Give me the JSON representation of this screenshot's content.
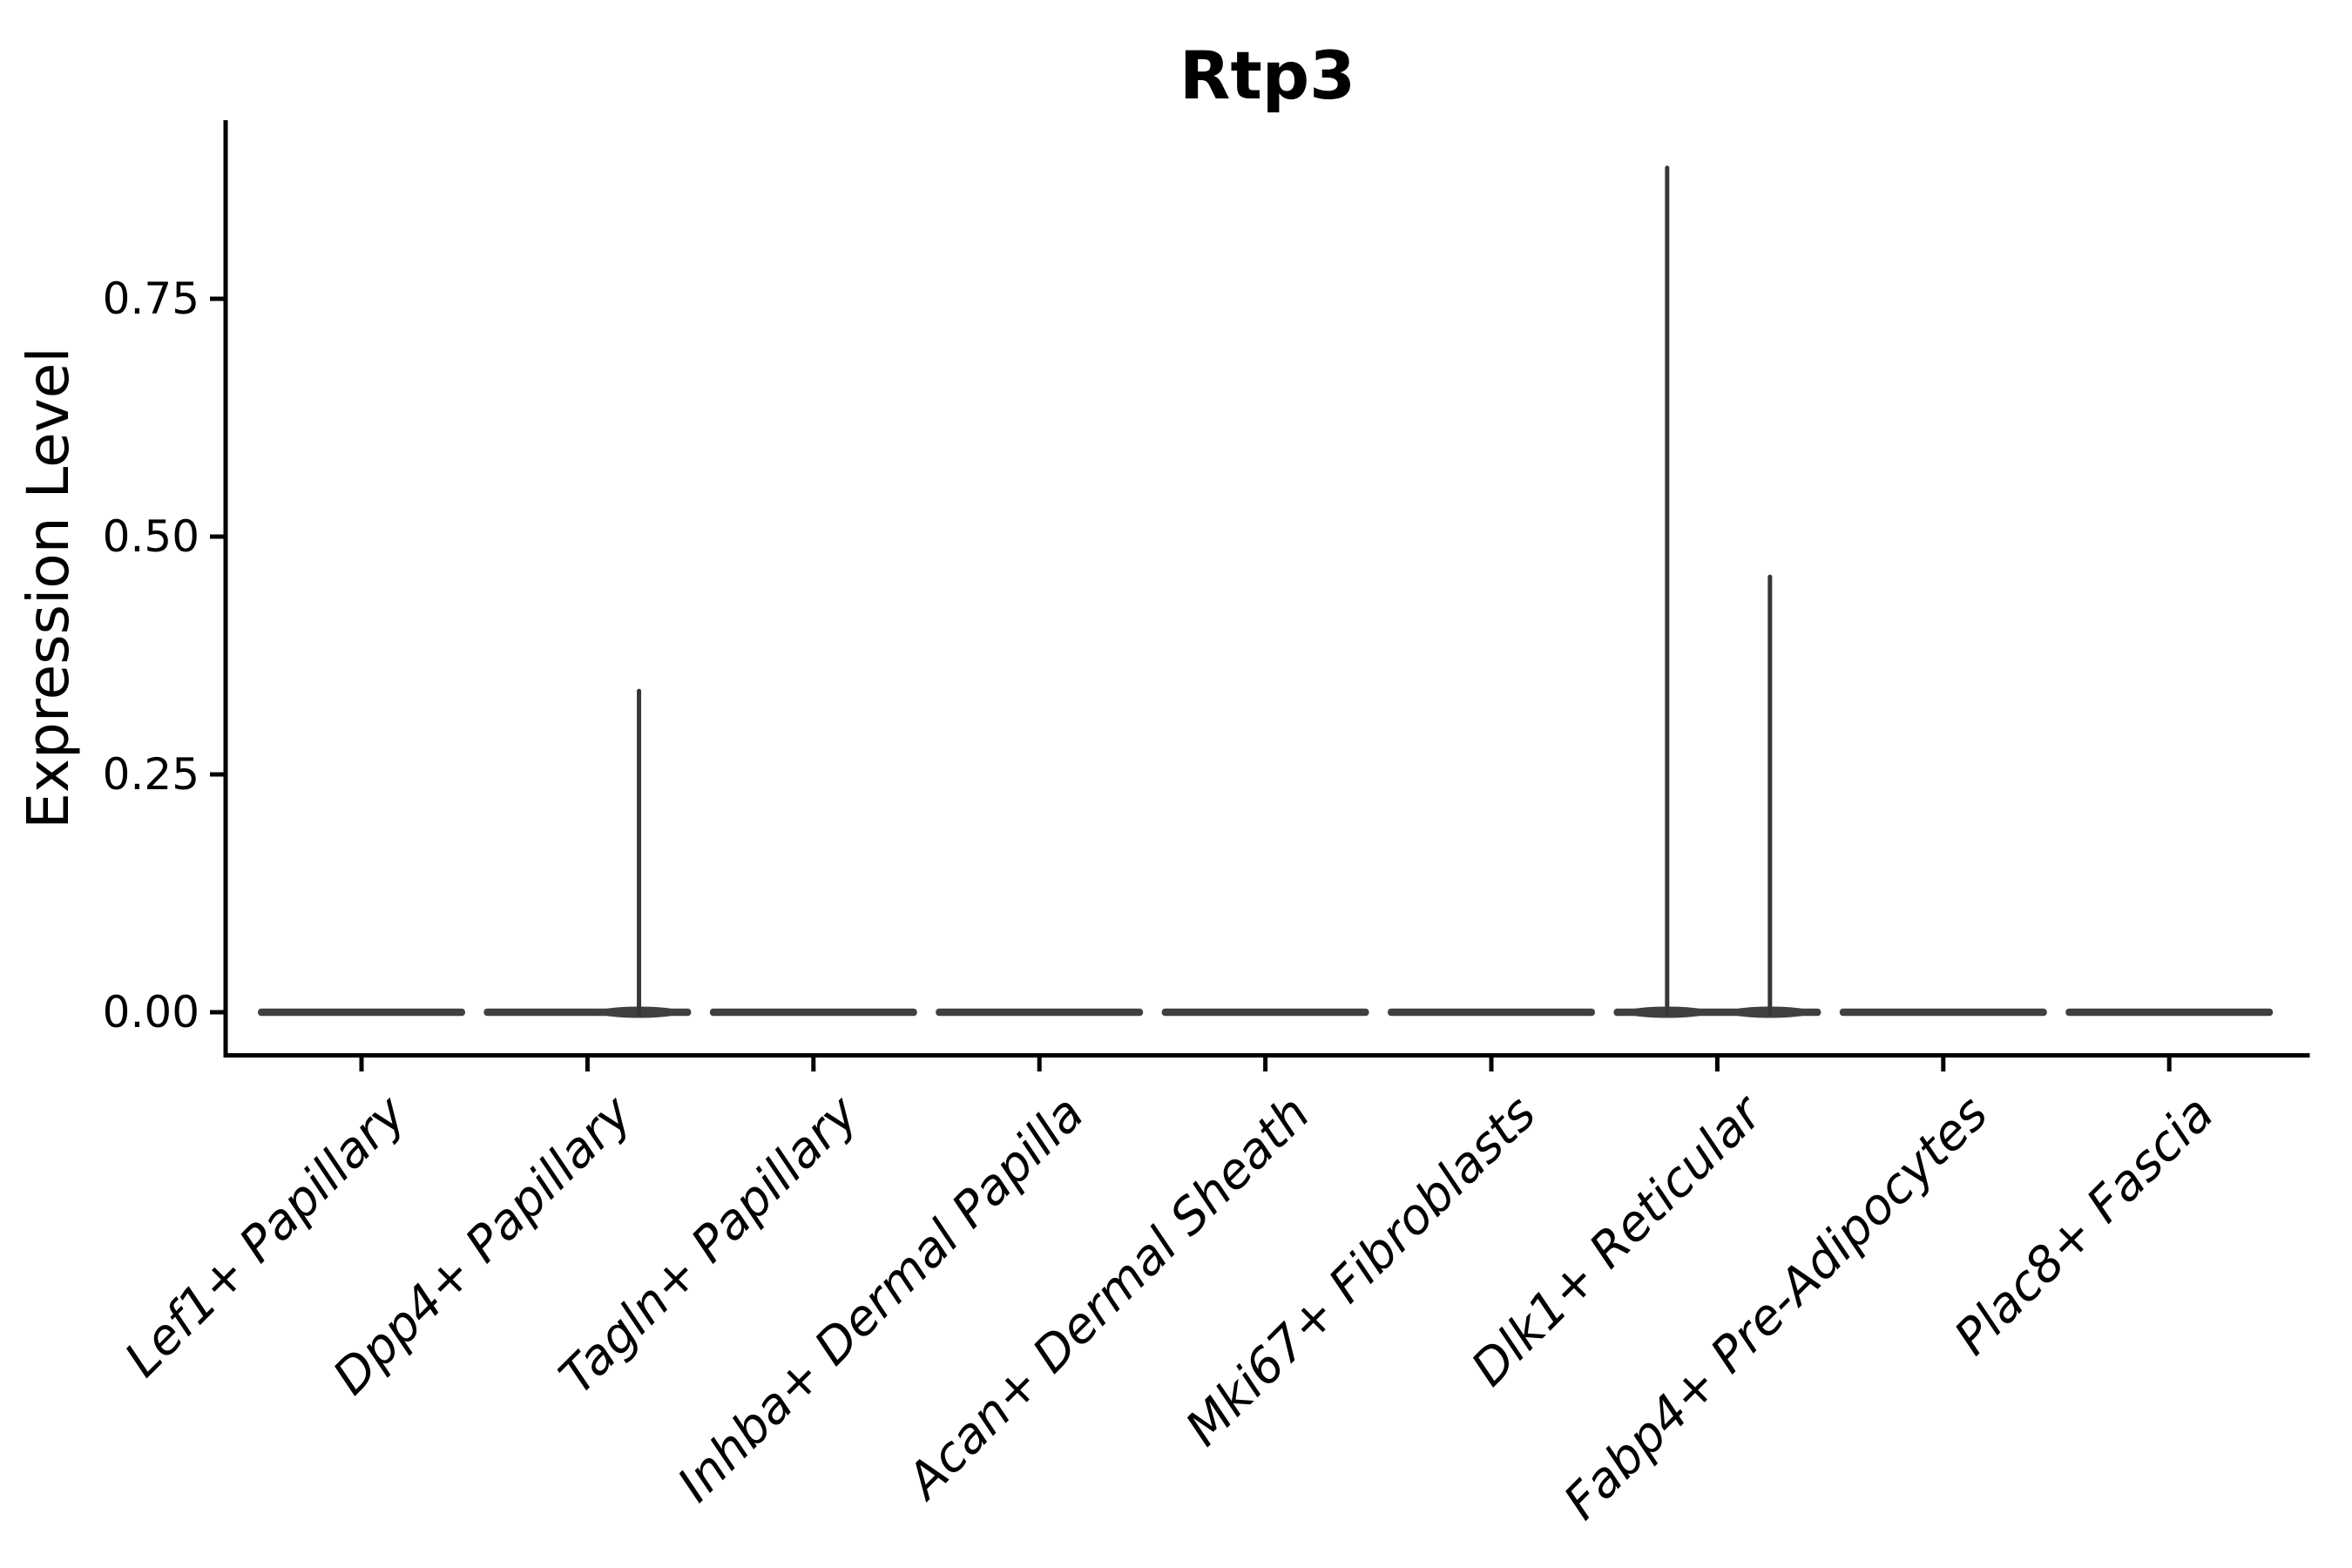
{
  "chart_data": {
    "type": "violin",
    "title": "Rtp3",
    "xlabel": "",
    "ylabel": "Expression Level",
    "categories": [
      "Lef1+ Papillary",
      "Dpp4+ Papillary",
      "Tagln+ Papillary",
      "Inhba+ Dermal Papilla",
      "Acan+ Dermal Sheath",
      "Mki67+ Fibroblasts",
      "Dlk1+ Reticular",
      "Fabp4+ Pre-Adipocytes",
      "Plac8+ Fascia"
    ],
    "yticks": [
      0.0,
      0.25,
      0.5,
      0.75
    ],
    "ytick_labels": [
      "0.00",
      "0.25",
      "0.50",
      "0.75"
    ],
    "ylim": [
      -0.04,
      0.94
    ],
    "grid": false,
    "legend": null,
    "series": [
      {
        "category": "Lef1+ Papillary",
        "base_value": 0.0,
        "spikes": []
      },
      {
        "category": "Dpp4+ Papillary",
        "base_value": 0.0,
        "spikes": [
          {
            "value": 0.34,
            "offset": 0.228
          }
        ]
      },
      {
        "category": "Tagln+ Papillary",
        "base_value": 0.0,
        "spikes": []
      },
      {
        "category": "Inhba+ Dermal Papilla",
        "base_value": 0.0,
        "spikes": []
      },
      {
        "category": "Acan+ Dermal Sheath",
        "base_value": 0.0,
        "spikes": []
      },
      {
        "category": "Mki67+ Fibroblasts",
        "base_value": 0.0,
        "spikes": []
      },
      {
        "category": "Dlk1+ Reticular",
        "base_value": 0.0,
        "spikes": [
          {
            "value": 0.89,
            "offset": -0.222
          },
          {
            "value": 0.46,
            "offset": 0.233
          }
        ]
      },
      {
        "category": "Fabp4+ Pre-Adipocytes",
        "base_value": 0.0,
        "spikes": []
      },
      {
        "category": "Plac8+ Fascia",
        "base_value": 0.0,
        "spikes": []
      }
    ],
    "colors": {
      "background": "#ffffff",
      "axis": "#000000",
      "text": "#000000",
      "violin_body": "#404040",
      "violin_spike": "#373737"
    }
  }
}
